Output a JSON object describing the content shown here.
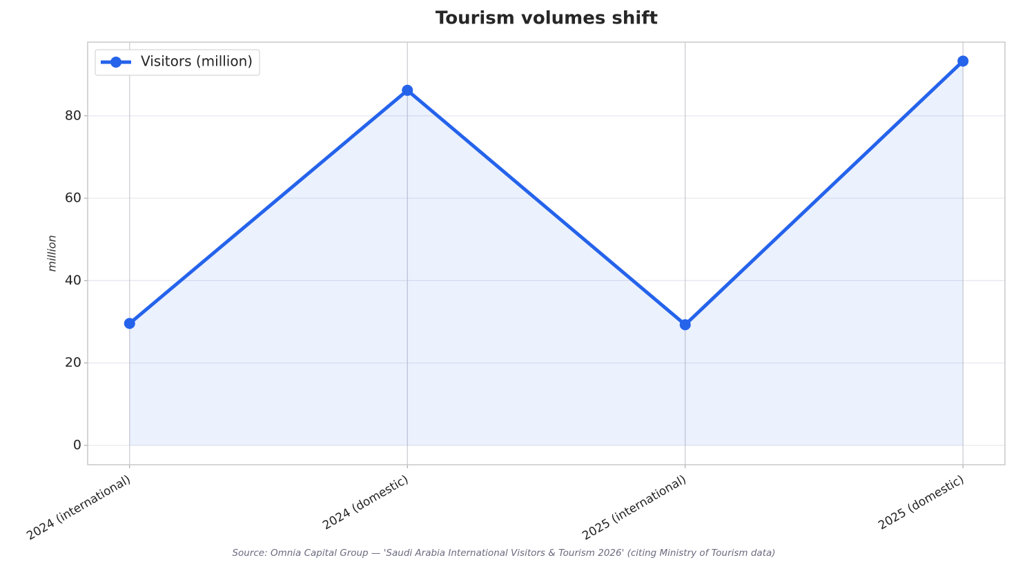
{
  "chart_data": {
    "type": "line",
    "title": "Tourism volumes shift",
    "y_label": "million",
    "source": "Source: Omnia Capital Group — 'Saudi Arabia International Visitors & Tourism 2026' (citing Ministry of Tourism data)",
    "categories": [
      "2024 (international)",
      "2024 (domestic)",
      "2025 (international)",
      "2025 (domestic)"
    ],
    "series": [
      {
        "name": "Visitors (million)",
        "color": "#2563eb",
        "values": [
          29.6,
          86.2,
          29.3,
          93.3
        ]
      }
    ],
    "ylim": [
      -4.7,
      97.9
    ],
    "yticks": [
      0,
      20,
      40,
      60,
      80
    ],
    "grid": true,
    "legend": "upper left"
  }
}
